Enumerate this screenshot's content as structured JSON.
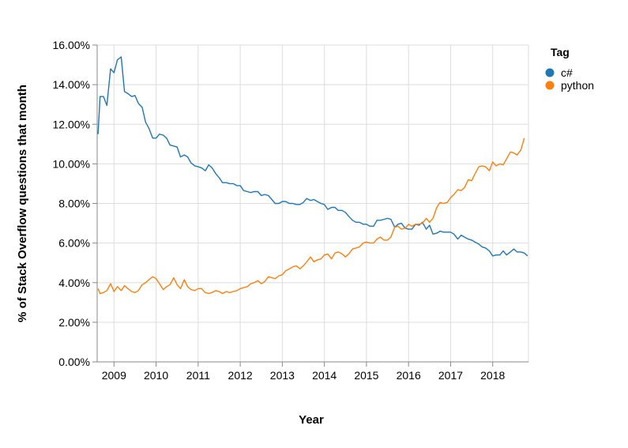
{
  "chart_data": {
    "type": "line",
    "xlabel": "Year",
    "ylabel": "% of Stack Overflow questions that month",
    "x_ticks": [
      "2009",
      "2010",
      "2011",
      "2012",
      "2013",
      "2014",
      "2015",
      "2016",
      "2017",
      "2018"
    ],
    "y_ticks": [
      "0.00%",
      "2.00%",
      "4.00%",
      "6.00%",
      "8.00%",
      "10.00%",
      "12.00%",
      "14.00%",
      "16.00%"
    ],
    "xlim": [
      2008.6,
      2018.85
    ],
    "ylim": [
      0,
      16
    ],
    "grid": true,
    "legend": {
      "title": "Tag",
      "placement": "right"
    },
    "series": [
      {
        "name": "c#",
        "color": "#1f77b4",
        "points": [
          [
            2008.62,
            11.5
          ],
          [
            2008.67,
            13.4
          ],
          [
            2008.75,
            13.4
          ],
          [
            2008.83,
            12.95
          ],
          [
            2008.92,
            14.8
          ],
          [
            2009.0,
            14.6
          ],
          [
            2009.08,
            15.25
          ],
          [
            2009.17,
            15.4
          ],
          [
            2009.25,
            13.65
          ],
          [
            2009.33,
            13.55
          ],
          [
            2009.42,
            13.4
          ],
          [
            2009.5,
            13.45
          ],
          [
            2009.58,
            13.05
          ],
          [
            2009.67,
            12.85
          ],
          [
            2009.75,
            12.1
          ],
          [
            2009.83,
            11.8
          ],
          [
            2009.92,
            11.3
          ],
          [
            2010.0,
            11.3
          ],
          [
            2010.08,
            11.5
          ],
          [
            2010.17,
            11.45
          ],
          [
            2010.25,
            11.3
          ],
          [
            2010.33,
            10.95
          ],
          [
            2010.42,
            10.9
          ],
          [
            2010.5,
            10.85
          ],
          [
            2010.58,
            10.35
          ],
          [
            2010.67,
            10.45
          ],
          [
            2010.75,
            10.35
          ],
          [
            2010.83,
            10.05
          ],
          [
            2010.92,
            9.9
          ],
          [
            2011.0,
            9.85
          ],
          [
            2011.08,
            9.8
          ],
          [
            2011.17,
            9.65
          ],
          [
            2011.25,
            9.95
          ],
          [
            2011.33,
            9.8
          ],
          [
            2011.42,
            9.5
          ],
          [
            2011.5,
            9.3
          ],
          [
            2011.58,
            9.05
          ],
          [
            2011.67,
            9.05
          ],
          [
            2011.75,
            9.0
          ],
          [
            2011.83,
            9.0
          ],
          [
            2011.92,
            8.9
          ],
          [
            2012.0,
            8.9
          ],
          [
            2012.08,
            8.65
          ],
          [
            2012.17,
            8.6
          ],
          [
            2012.25,
            8.55
          ],
          [
            2012.33,
            8.6
          ],
          [
            2012.42,
            8.6
          ],
          [
            2012.5,
            8.4
          ],
          [
            2012.58,
            8.45
          ],
          [
            2012.67,
            8.4
          ],
          [
            2012.75,
            8.2
          ],
          [
            2012.83,
            8.0
          ],
          [
            2012.92,
            8.0
          ],
          [
            2013.0,
            8.1
          ],
          [
            2013.08,
            8.1
          ],
          [
            2013.17,
            8.0
          ],
          [
            2013.25,
            8.0
          ],
          [
            2013.33,
            7.95
          ],
          [
            2013.42,
            7.95
          ],
          [
            2013.5,
            8.05
          ],
          [
            2013.58,
            8.25
          ],
          [
            2013.67,
            8.15
          ],
          [
            2013.75,
            8.2
          ],
          [
            2013.83,
            8.1
          ],
          [
            2013.92,
            8.0
          ],
          [
            2014.0,
            7.95
          ],
          [
            2014.08,
            7.7
          ],
          [
            2014.17,
            7.8
          ],
          [
            2014.25,
            7.8
          ],
          [
            2014.33,
            7.65
          ],
          [
            2014.42,
            7.65
          ],
          [
            2014.5,
            7.55
          ],
          [
            2014.58,
            7.35
          ],
          [
            2014.67,
            7.15
          ],
          [
            2014.75,
            7.05
          ],
          [
            2014.83,
            7.05
          ],
          [
            2014.92,
            6.95
          ],
          [
            2015.0,
            6.95
          ],
          [
            2015.08,
            6.85
          ],
          [
            2015.17,
            6.85
          ],
          [
            2015.25,
            7.15
          ],
          [
            2015.33,
            7.15
          ],
          [
            2015.42,
            7.2
          ],
          [
            2015.5,
            7.25
          ],
          [
            2015.58,
            7.2
          ],
          [
            2015.67,
            6.8
          ],
          [
            2015.75,
            6.95
          ],
          [
            2015.83,
            7.0
          ],
          [
            2015.92,
            6.75
          ],
          [
            2016.0,
            6.7
          ],
          [
            2016.08,
            6.7
          ],
          [
            2016.17,
            6.95
          ],
          [
            2016.25,
            6.9
          ],
          [
            2016.33,
            7.05
          ],
          [
            2016.42,
            6.7
          ],
          [
            2016.5,
            6.9
          ],
          [
            2016.58,
            6.45
          ],
          [
            2016.67,
            6.5
          ],
          [
            2016.75,
            6.6
          ],
          [
            2016.83,
            6.55
          ],
          [
            2016.92,
            6.55
          ],
          [
            2017.0,
            6.55
          ],
          [
            2017.08,
            6.45
          ],
          [
            2017.17,
            6.2
          ],
          [
            2017.25,
            6.4
          ],
          [
            2017.33,
            6.3
          ],
          [
            2017.42,
            6.2
          ],
          [
            2017.5,
            6.15
          ],
          [
            2017.58,
            6.05
          ],
          [
            2017.67,
            5.95
          ],
          [
            2017.75,
            5.8
          ],
          [
            2017.83,
            5.75
          ],
          [
            2017.92,
            5.6
          ],
          [
            2018.0,
            5.35
          ],
          [
            2018.08,
            5.4
          ],
          [
            2018.17,
            5.4
          ],
          [
            2018.25,
            5.6
          ],
          [
            2018.33,
            5.4
          ],
          [
            2018.42,
            5.55
          ],
          [
            2018.5,
            5.7
          ],
          [
            2018.58,
            5.55
          ],
          [
            2018.67,
            5.55
          ],
          [
            2018.75,
            5.5
          ],
          [
            2018.83,
            5.35
          ]
        ]
      },
      {
        "name": "python",
        "color": "#ff7f0e",
        "points": [
          [
            2008.62,
            3.7
          ],
          [
            2008.67,
            3.45
          ],
          [
            2008.75,
            3.5
          ],
          [
            2008.83,
            3.6
          ],
          [
            2008.92,
            3.95
          ],
          [
            2009.0,
            3.55
          ],
          [
            2009.08,
            3.8
          ],
          [
            2009.17,
            3.6
          ],
          [
            2009.25,
            3.85
          ],
          [
            2009.33,
            3.7
          ],
          [
            2009.42,
            3.55
          ],
          [
            2009.5,
            3.5
          ],
          [
            2009.58,
            3.6
          ],
          [
            2009.67,
            3.9
          ],
          [
            2009.75,
            4.0
          ],
          [
            2009.83,
            4.15
          ],
          [
            2009.92,
            4.3
          ],
          [
            2010.0,
            4.2
          ],
          [
            2010.08,
            3.95
          ],
          [
            2010.17,
            3.65
          ],
          [
            2010.25,
            3.8
          ],
          [
            2010.33,
            3.9
          ],
          [
            2010.42,
            4.25
          ],
          [
            2010.5,
            3.9
          ],
          [
            2010.58,
            3.7
          ],
          [
            2010.67,
            4.15
          ],
          [
            2010.75,
            3.8
          ],
          [
            2010.83,
            3.65
          ],
          [
            2010.92,
            3.6
          ],
          [
            2011.0,
            3.7
          ],
          [
            2011.08,
            3.7
          ],
          [
            2011.17,
            3.5
          ],
          [
            2011.25,
            3.45
          ],
          [
            2011.33,
            3.5
          ],
          [
            2011.42,
            3.6
          ],
          [
            2011.5,
            3.55
          ],
          [
            2011.58,
            3.45
          ],
          [
            2011.67,
            3.55
          ],
          [
            2011.75,
            3.5
          ],
          [
            2011.83,
            3.55
          ],
          [
            2011.92,
            3.6
          ],
          [
            2012.0,
            3.7
          ],
          [
            2012.08,
            3.75
          ],
          [
            2012.17,
            3.8
          ],
          [
            2012.25,
            3.95
          ],
          [
            2012.33,
            4.0
          ],
          [
            2012.42,
            4.1
          ],
          [
            2012.5,
            3.95
          ],
          [
            2012.58,
            4.05
          ],
          [
            2012.67,
            4.3
          ],
          [
            2012.75,
            4.25
          ],
          [
            2012.83,
            4.2
          ],
          [
            2012.92,
            4.35
          ],
          [
            2013.0,
            4.4
          ],
          [
            2013.08,
            4.6
          ],
          [
            2013.17,
            4.7
          ],
          [
            2013.25,
            4.8
          ],
          [
            2013.33,
            4.85
          ],
          [
            2013.42,
            4.7
          ],
          [
            2013.5,
            4.85
          ],
          [
            2013.58,
            5.05
          ],
          [
            2013.67,
            5.3
          ],
          [
            2013.75,
            5.05
          ],
          [
            2013.83,
            5.15
          ],
          [
            2013.92,
            5.2
          ],
          [
            2014.0,
            5.4
          ],
          [
            2014.08,
            5.45
          ],
          [
            2014.17,
            5.2
          ],
          [
            2014.25,
            5.5
          ],
          [
            2014.33,
            5.55
          ],
          [
            2014.42,
            5.45
          ],
          [
            2014.5,
            5.3
          ],
          [
            2014.58,
            5.45
          ],
          [
            2014.67,
            5.7
          ],
          [
            2014.75,
            5.75
          ],
          [
            2014.83,
            5.8
          ],
          [
            2014.92,
            6.0
          ],
          [
            2015.0,
            6.05
          ],
          [
            2015.08,
            6.0
          ],
          [
            2015.17,
            6.0
          ],
          [
            2015.25,
            6.2
          ],
          [
            2015.33,
            6.3
          ],
          [
            2015.42,
            6.15
          ],
          [
            2015.5,
            6.15
          ],
          [
            2015.58,
            6.3
          ],
          [
            2015.67,
            6.8
          ],
          [
            2015.75,
            6.85
          ],
          [
            2015.83,
            6.7
          ],
          [
            2015.92,
            6.75
          ],
          [
            2016.0,
            6.95
          ],
          [
            2016.08,
            6.85
          ],
          [
            2016.17,
            6.95
          ],
          [
            2016.25,
            6.95
          ],
          [
            2016.33,
            7.0
          ],
          [
            2016.42,
            7.25
          ],
          [
            2016.5,
            7.05
          ],
          [
            2016.58,
            7.25
          ],
          [
            2016.67,
            7.8
          ],
          [
            2016.75,
            8.05
          ],
          [
            2016.83,
            8.0
          ],
          [
            2016.92,
            8.05
          ],
          [
            2017.0,
            8.3
          ],
          [
            2017.08,
            8.45
          ],
          [
            2017.17,
            8.7
          ],
          [
            2017.25,
            8.65
          ],
          [
            2017.33,
            8.8
          ],
          [
            2017.42,
            9.2
          ],
          [
            2017.5,
            9.15
          ],
          [
            2017.58,
            9.5
          ],
          [
            2017.67,
            9.85
          ],
          [
            2017.75,
            9.9
          ],
          [
            2017.83,
            9.85
          ],
          [
            2017.92,
            9.65
          ],
          [
            2018.0,
            10.1
          ],
          [
            2018.08,
            9.9
          ],
          [
            2018.17,
            10.0
          ],
          [
            2018.25,
            9.95
          ],
          [
            2018.33,
            10.25
          ],
          [
            2018.42,
            10.6
          ],
          [
            2018.5,
            10.55
          ],
          [
            2018.58,
            10.45
          ],
          [
            2018.67,
            10.7
          ],
          [
            2018.75,
            11.3
          ]
        ]
      }
    ]
  }
}
